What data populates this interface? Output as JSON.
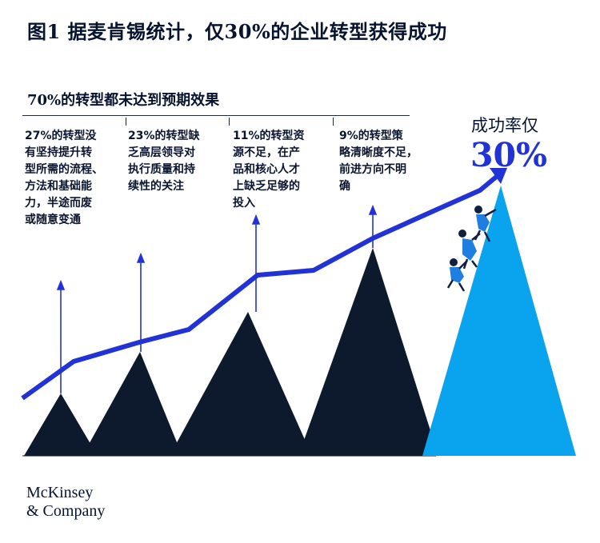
{
  "title": "图1 据麦肯锡统计，仅30%的企业转型获得成功",
  "subtitle": "70%的转型都未达到预期效果",
  "reasons": [
    {
      "percent": "27%",
      "lines": [
        "的转型没",
        "有坚持提升转",
        "型所需的流程、",
        "方法和基础能",
        "力，半途而废",
        "或随意变通"
      ]
    },
    {
      "percent": "23%",
      "lines": [
        "的转型缺",
        "乏高层领导对",
        "执行质量和持",
        "续性的关注"
      ]
    },
    {
      "percent": "11%",
      "lines": [
        "的转型资",
        "源不足，在产",
        "品和核心人才",
        "上缺乏足够的",
        "投入"
      ]
    },
    {
      "percent": "9%",
      "lines": [
        "的转型策",
        "略清晰度不足，",
        "前进方向不明",
        "确"
      ]
    }
  ],
  "success": {
    "label": "成功率仅",
    "value": "30%"
  },
  "logo": {
    "line1": "McKinsey",
    "line2": "& Company"
  },
  "colors": {
    "trend_line": "#2133d6",
    "mountains": "#0d1a2e",
    "success_peak": "#0aa3ee",
    "climbers": "#1e7fe0"
  }
}
